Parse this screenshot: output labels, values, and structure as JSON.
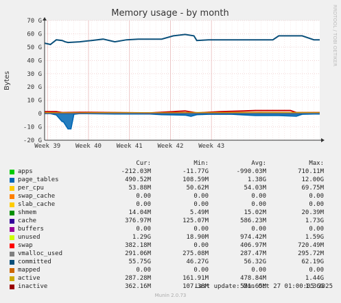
{
  "chart_data": {
    "type": "line",
    "title": "Memory usage - by month",
    "ylabel": "Bytes",
    "y_unit": "bytes",
    "ylim": [
      -20000000000,
      70000000000
    ],
    "y_ticks": [
      -20000000000,
      -10000000000,
      0,
      10000000000,
      20000000000,
      30000000000,
      40000000000,
      50000000000,
      60000000000,
      70000000000
    ],
    "y_tick_labels": [
      "-20 G",
      "-10 G",
      "0",
      "10 G",
      "20 G",
      "30 G",
      "40 G",
      "50 G",
      "60 G",
      "70 G"
    ],
    "x_tick_labels": [
      "Week 39",
      "Week 40",
      "Week 41",
      "Week 42",
      "Week 43"
    ],
    "grid": true,
    "watermark": "RRDTOOL / TOBI OETIKER",
    "series": [
      {
        "name": "committed",
        "color": "#0a4f7a",
        "x_days": [
          0,
          1,
          2,
          3,
          3.5,
          4,
          6,
          8,
          10,
          12,
          14,
          16,
          18,
          20,
          22,
          24,
          25.5,
          26,
          28,
          30,
          32,
          34,
          36,
          37,
          38,
          39,
          40,
          42,
          44,
          46,
          47
        ],
        "values_g": [
          53,
          52,
          55.5,
          55,
          54,
          53.5,
          54,
          55,
          56,
          54,
          55.5,
          56,
          56,
          56,
          58.5,
          59.5,
          58.5,
          55,
          55.5,
          55.5,
          55.5,
          55.5,
          55.5,
          55.5,
          55.5,
          55.5,
          58.5,
          58.5,
          58.5,
          55.5,
          55.5
        ]
      },
      {
        "name": "page_tables",
        "color": "#0066b3",
        "x_days": [
          0,
          1,
          2,
          3,
          3.2,
          4,
          4.5,
          5,
          6,
          12,
          18,
          20,
          24,
          25,
          26,
          28,
          32,
          34,
          36,
          40,
          43,
          44,
          46,
          47
        ],
        "values_g": [
          0,
          0,
          -1,
          -6,
          -6,
          -11.5,
          -11.5,
          -0.5,
          0,
          -0.3,
          -0.3,
          -0.8,
          -1.2,
          -2,
          -0.8,
          -0.5,
          -0.5,
          -1,
          -1.5,
          -1.5,
          -2,
          -0.5,
          -0.3,
          -0.3
        ]
      },
      {
        "name": "swap",
        "color": "#cc0000",
        "x_days": [
          0,
          2,
          3,
          6,
          12,
          18,
          22,
          24,
          26,
          30,
          34,
          36,
          42,
          43,
          44,
          47
        ],
        "values_g": [
          1.5,
          1.5,
          0.8,
          1,
          0.8,
          0.5,
          1.5,
          2,
          0.5,
          1.5,
          2,
          2.3,
          2.3,
          0.8,
          0.8,
          0.8
        ]
      },
      {
        "name": "active",
        "color": "#ccaa00",
        "x_days": [
          0,
          6,
          12,
          18,
          24,
          30,
          36,
          42,
          47
        ],
        "values_g": [
          0.8,
          0.6,
          0.8,
          0.7,
          0.9,
          0.8,
          1,
          0.9,
          0.8
        ]
      },
      {
        "name": "inactive",
        "color": "#990000",
        "x_days": [
          0,
          6,
          12,
          18,
          24,
          30,
          36,
          42,
          47
        ],
        "values_g": [
          0.3,
          0.3,
          0.4,
          0.3,
          0.4,
          0.3,
          0.4,
          0.3,
          0.4
        ]
      },
      {
        "name": "vmalloc_used",
        "color": "#808080",
        "x_days": [
          0,
          12,
          24,
          36,
          47
        ],
        "values_g": [
          0.28,
          0.28,
          0.28,
          0.29,
          0.29
        ]
      }
    ]
  },
  "legend": {
    "headers": {
      "cur": "Cur:",
      "min": "Min:",
      "avg": "Avg:",
      "max": "Max:"
    },
    "rows": [
      {
        "name": "apps",
        "color": "#00cc00",
        "cur": "-212.03M",
        "min": "-11.77G",
        "avg": "-990.03M",
        "max": "710.11M"
      },
      {
        "name": "page_tables",
        "color": "#0066b3",
        "cur": "490.52M",
        "min": "108.59M",
        "avg": "1.38G",
        "max": "12.00G"
      },
      {
        "name": "per_cpu",
        "color": "#ffcc00",
        "cur": "53.88M",
        "min": "50.62M",
        "avg": "54.03M",
        "max": "69.75M"
      },
      {
        "name": "swap_cache",
        "color": "#ff8000",
        "cur": "0.00",
        "min": "0.00",
        "avg": "0.00",
        "max": "0.00"
      },
      {
        "name": "slab_cache",
        "color": "#ffcc00",
        "cur": "0.00",
        "min": "0.00",
        "avg": "0.00",
        "max": "0.00"
      },
      {
        "name": "shmem",
        "color": "#008f00",
        "cur": "14.04M",
        "min": "5.49M",
        "avg": "15.02M",
        "max": "20.39M"
      },
      {
        "name": "cache",
        "color": "#330099",
        "cur": "376.97M",
        "min": "125.07M",
        "avg": "586.23M",
        "max": "1.73G"
      },
      {
        "name": "buffers",
        "color": "#990099",
        "cur": "0.00",
        "min": "0.00",
        "avg": "0.00",
        "max": "0.00"
      },
      {
        "name": "unused",
        "color": "#ccff00",
        "cur": "1.29G",
        "min": "18.90M",
        "avg": "974.42M",
        "max": "1.59G"
      },
      {
        "name": "swap",
        "color": "#ff0000",
        "cur": "382.18M",
        "min": "0.00",
        "avg": "406.97M",
        "max": "720.49M"
      },
      {
        "name": "vmalloc_used",
        "color": "#808080",
        "cur": "291.06M",
        "min": "275.08M",
        "avg": "287.47M",
        "max": "295.72M"
      },
      {
        "name": "committed",
        "color": "#0a4f7a",
        "cur": "55.75G",
        "min": "46.27G",
        "avg": "56.32G",
        "max": "62.19G"
      },
      {
        "name": "mapped",
        "color": "#cc6600",
        "cur": "0.00",
        "min": "0.00",
        "avg": "0.00",
        "max": "0.00"
      },
      {
        "name": "active",
        "color": "#ccaa00",
        "cur": "287.28M",
        "min": "161.91M",
        "avg": "478.84M",
        "max": "1.44G"
      },
      {
        "name": "inactive",
        "color": "#990000",
        "cur": "362.16M",
        "min": "107.38M",
        "avg": "521.65M",
        "max": "1.36G"
      }
    ]
  },
  "footer": {
    "last_update": "Last update: Mon Oct 27 01:00:05 2025",
    "munin_version": "Munin 2.0.73"
  }
}
